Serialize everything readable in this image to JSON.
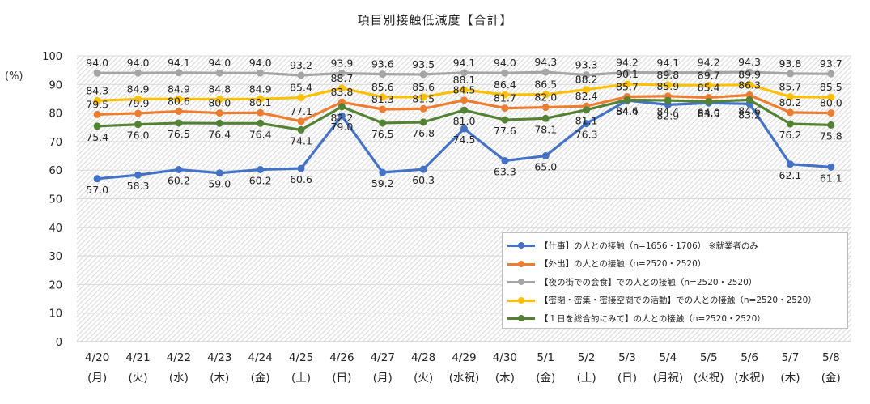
{
  "chart_data": {
    "type": "line",
    "title": "項目別接触低減度【合計】",
    "ylabel": "(%)",
    "xlabel": "",
    "ylim": [
      0,
      100
    ],
    "yticks": [
      "0",
      "10",
      "20",
      "30",
      "40",
      "50",
      "60",
      "70",
      "80",
      "90",
      "100"
    ],
    "grid": true,
    "legend_position": "bottom-right",
    "categories": [
      {
        "date": "4/20",
        "day": "(月)"
      },
      {
        "date": "4/21",
        "day": "(火)"
      },
      {
        "date": "4/22",
        "day": "(水)"
      },
      {
        "date": "4/23",
        "day": "(木)"
      },
      {
        "date": "4/24",
        "day": "(金)"
      },
      {
        "date": "4/25",
        "day": "(土)"
      },
      {
        "date": "4/26",
        "day": "(日)"
      },
      {
        "date": "4/27",
        "day": "(月)"
      },
      {
        "date": "4/28",
        "day": "(火)"
      },
      {
        "date": "4/29",
        "day": "(水祝)"
      },
      {
        "date": "4/30",
        "day": "(木)"
      },
      {
        "date": "5/1",
        "day": "(金)"
      },
      {
        "date": "5/2",
        "day": "(土)"
      },
      {
        "date": "5/3",
        "day": "(日)"
      },
      {
        "date": "5/4",
        "day": "(月祝)"
      },
      {
        "date": "5/5",
        "day": "(火祝)"
      },
      {
        "date": "5/6",
        "day": "(水祝)"
      },
      {
        "date": "5/7",
        "day": "(木)"
      },
      {
        "date": "5/8",
        "day": "(金)"
      }
    ],
    "series": [
      {
        "name": "【仕事】の人との接触（n=1656・1706） ※就業者のみ",
        "color": "#4472C4",
        "label_side": "below",
        "values": [
          "57.0",
          "58.3",
          "60.2",
          "59.0",
          "60.2",
          "60.6",
          "79.0",
          "59.2",
          "60.3",
          "74.5",
          "63.3",
          "65.0",
          "76.3",
          "84.4",
          "82.9",
          "83.5",
          "83.2",
          "62.1",
          "61.1"
        ]
      },
      {
        "name": "【外出】の人との接触（n=2520・2520）",
        "color": "#ED7D31",
        "label_side": "above",
        "values": [
          "79.5",
          "79.9",
          "80.6",
          "80.0",
          "80.1",
          "77.1",
          "83.8",
          "81.3",
          "81.5",
          "84.5",
          "81.7",
          "82.0",
          "82.4",
          "85.7",
          "85.9",
          "85.4",
          "86.3",
          "80.2",
          "80.0"
        ]
      },
      {
        "name": "【夜の街での会食】での人との接触（n=2520・2520）",
        "color": "#A5A5A5",
        "label_side": "above",
        "values": [
          "94.0",
          "94.0",
          "94.1",
          "94.0",
          "94.0",
          "93.2",
          "93.9",
          "93.6",
          "93.5",
          "94.1",
          "94.0",
          "94.3",
          "93.3",
          "94.2",
          "94.1",
          "94.2",
          "94.3",
          "93.8",
          "93.7"
        ]
      },
      {
        "name": "【密閉・密集・密接空間での活動】での人との接触（n=2520・2520）",
        "color": "#FFC000",
        "label_side": "above",
        "values": [
          "84.3",
          "84.9",
          "84.9",
          "84.8",
          "84.9",
          "85.4",
          "88.7",
          "85.6",
          "85.6",
          "88.1",
          "86.4",
          "86.5",
          "88.2",
          "90.1",
          "89.8",
          "89.7",
          "89.9",
          "85.7",
          "85.5"
        ]
      },
      {
        "name": "【１日を総合的にみて】の人との接触（n=2520・2520）",
        "color": "#548235",
        "label_side": "below",
        "values": [
          "75.4",
          "76.0",
          "76.5",
          "76.4",
          "76.4",
          "74.1",
          "82.2",
          "76.5",
          "76.8",
          "81.0",
          "77.6",
          "78.1",
          "81.1",
          "84.6",
          "84.4",
          "84.0",
          "84.6",
          "76.2",
          "75.8"
        ]
      }
    ]
  }
}
